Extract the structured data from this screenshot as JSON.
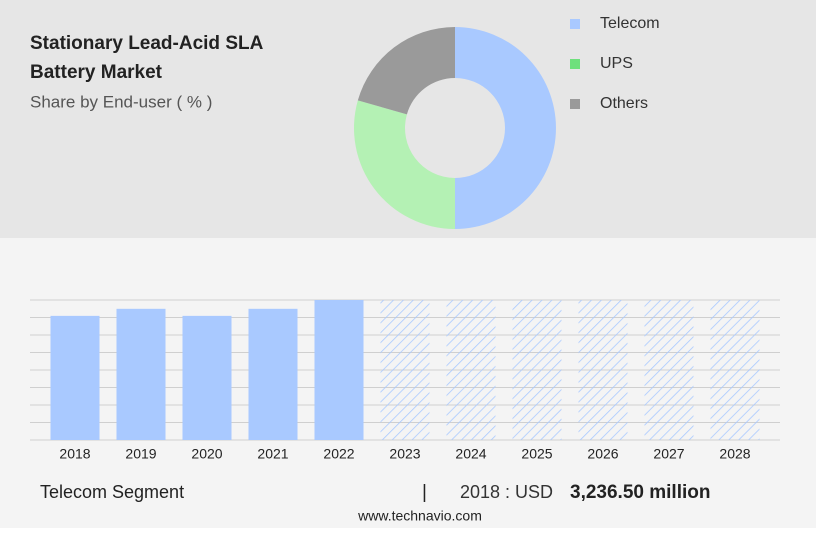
{
  "chart_data": [
    {
      "type": "donut",
      "title": "Stationary Lead-Acid SLA",
      "title_line2": "Battery Market",
      "subtitle": "Share by End-user ( % )",
      "categories": [
        "Telecom",
        "UPS",
        "Others"
      ],
      "values": [
        50,
        29.4,
        20.6
      ],
      "colors": [
        "#a9c9ff",
        "#b4f1b4",
        "#9a9a9a"
      ],
      "legend_colors": [
        "#a9c9ff",
        "#6ee07c",
        "#9a9a9a"
      ]
    },
    {
      "type": "bar",
      "categories": [
        "2018",
        "2019",
        "2020",
        "2021",
        "2022",
        "2023",
        "2024",
        "2025",
        "2026",
        "2027",
        "2028"
      ],
      "values": [
        3236.5,
        3420,
        3236.5,
        3420,
        3650,
        null,
        null,
        null,
        null,
        null,
        null
      ],
      "color": "#a9c9ff",
      "ylim": [
        0,
        3650
      ],
      "grid": true
    }
  ],
  "footer": {
    "segment": "Telecom Segment",
    "separator": "|",
    "year_label": "2018 : USD",
    "value_label": "3,236.50 million"
  },
  "source": "www.technavio.com"
}
